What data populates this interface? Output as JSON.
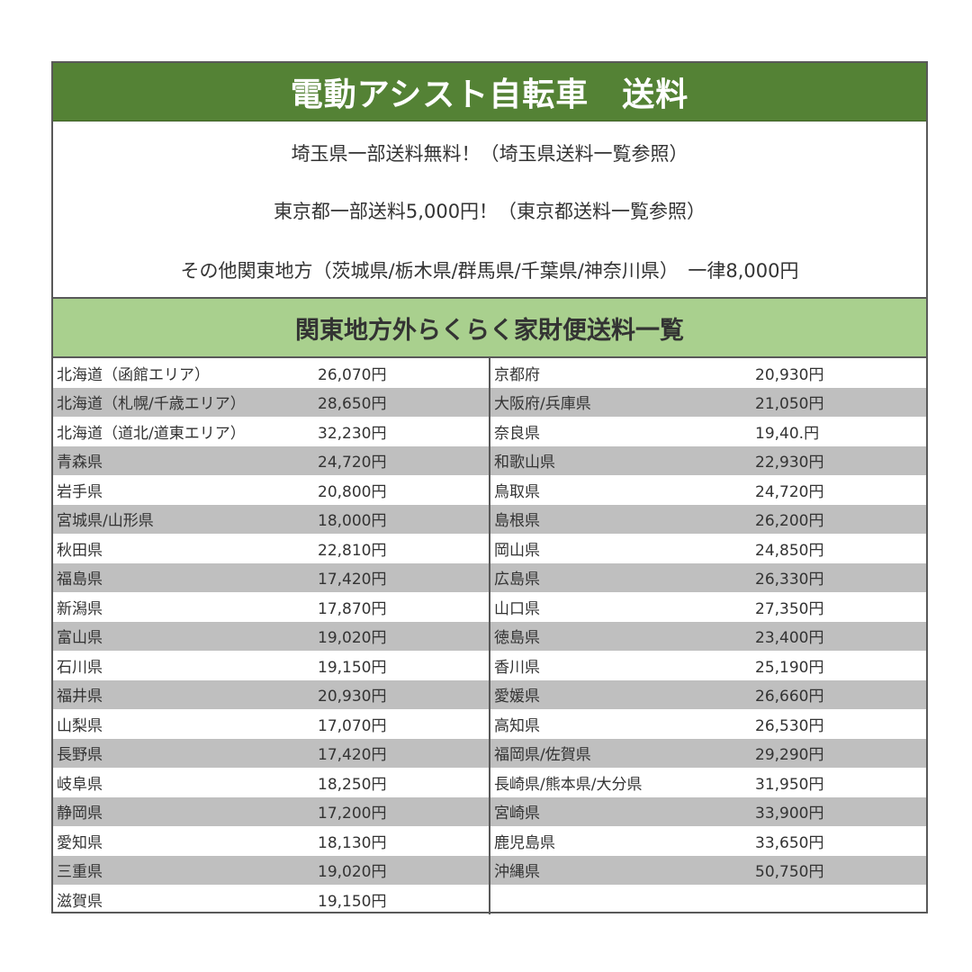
{
  "title": "電動アシスト自転車　送料",
  "notes": [
    "埼玉県一部送料無料！（埼玉県送料一覧参照）",
    "東京都一部送料5,000円！（東京都送料一覧参照）",
    "その他関東地方（茨城県/栃木県/群馬県/千葉県/神奈川県）　一律8,000円"
  ],
  "subtitle": "関東地方外らくらく家財便送料一覧",
  "colors": {
    "title_bg": "#548235",
    "subtitle_bg": "#a9d08e",
    "stripe": "#bfbfbf"
  },
  "left": [
    {
      "area": "北海道（函館エリア）",
      "price": "26,070円"
    },
    {
      "area": "北海道（札幌/千歳エリア）",
      "price": "28,650円"
    },
    {
      "area": "北海道（道北/道東エリア）",
      "price": "32,230円"
    },
    {
      "area": "青森県",
      "price": "24,720円"
    },
    {
      "area": "岩手県",
      "price": "20,800円"
    },
    {
      "area": "宮城県/山形県",
      "price": "18,000円"
    },
    {
      "area": "秋田県",
      "price": "22,810円"
    },
    {
      "area": "福島県",
      "price": "17,420円"
    },
    {
      "area": "新潟県",
      "price": "17,870円"
    },
    {
      "area": "富山県",
      "price": "19,020円"
    },
    {
      "area": "石川県",
      "price": "19,150円"
    },
    {
      "area": "福井県",
      "price": "20,930円"
    },
    {
      "area": "山梨県",
      "price": "17,070円"
    },
    {
      "area": "長野県",
      "price": "17,420円"
    },
    {
      "area": "岐阜県",
      "price": "18,250円"
    },
    {
      "area": "静岡県",
      "price": "17,200円"
    },
    {
      "area": "愛知県",
      "price": "18,130円"
    },
    {
      "area": "三重県",
      "price": "19,020円"
    },
    {
      "area": "滋賀県",
      "price": "19,150円"
    }
  ],
  "right": [
    {
      "area": "京都府",
      "price": "20,930円"
    },
    {
      "area": "大阪府/兵庫県",
      "price": "21,050円"
    },
    {
      "area": "奈良県",
      "price": "19,40.円"
    },
    {
      "area": "和歌山県",
      "price": "22,930円"
    },
    {
      "area": "鳥取県",
      "price": "24,720円"
    },
    {
      "area": "島根県",
      "price": "26,200円"
    },
    {
      "area": "岡山県",
      "price": "24,850円"
    },
    {
      "area": "広島県",
      "price": "26,330円"
    },
    {
      "area": "山口県",
      "price": "27,350円"
    },
    {
      "area": "徳島県",
      "price": "23,400円"
    },
    {
      "area": "香川県",
      "price": "25,190円"
    },
    {
      "area": "愛媛県",
      "price": "26,660円"
    },
    {
      "area": "高知県",
      "price": "26,530円"
    },
    {
      "area": "福岡県/佐賀県",
      "price": "29,290円"
    },
    {
      "area": "長崎県/熊本県/大分県",
      "price": "31,950円"
    },
    {
      "area": "宮崎県",
      "price": "33,900円"
    },
    {
      "area": "鹿児島県",
      "price": "33,650円"
    },
    {
      "area": "沖縄県",
      "price": "50,750円"
    }
  ]
}
